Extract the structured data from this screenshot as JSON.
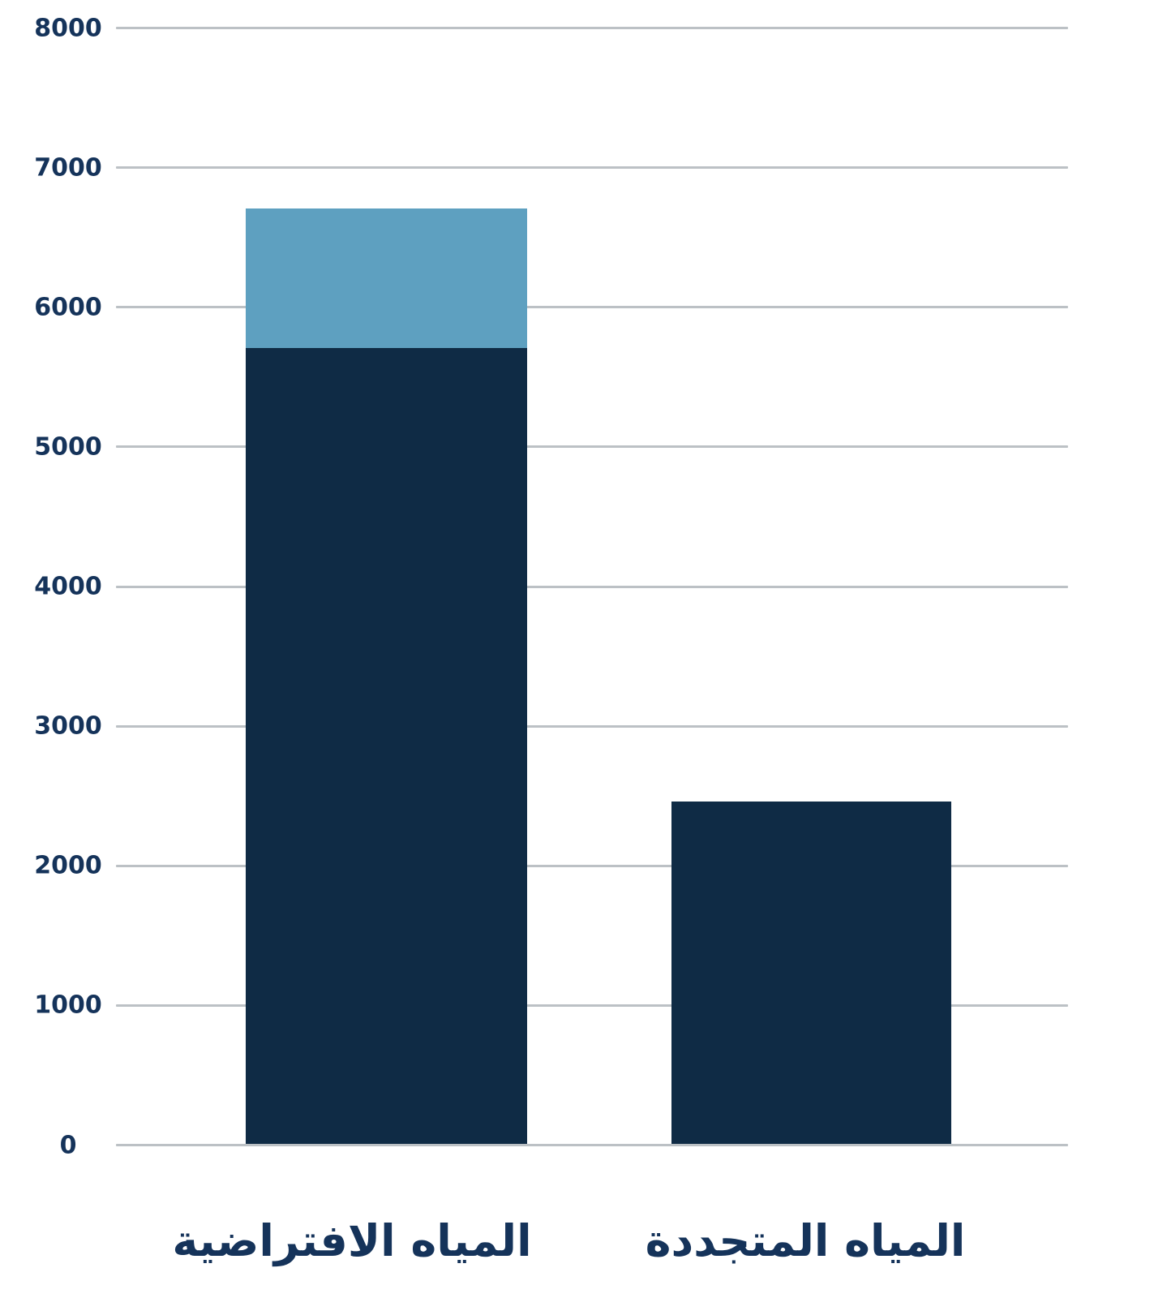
{
  "page": {
    "background_color": "#ffffff"
  },
  "chart_data": {
    "type": "bar",
    "stacked": true,
    "title": "",
    "xlabel": "",
    "ylabel": "",
    "categories": [
      "المياه الافتراضية",
      "المياه المتجددة"
    ],
    "series": [
      {
        "name": "segment-dark-navy",
        "color": "#0F2B45",
        "values": [
          5700,
          2450
        ]
      },
      {
        "name": "segment-light-blue",
        "color": "#5EA0C0",
        "values": [
          1000,
          0
        ]
      }
    ],
    "stack_totals": [
      6700,
      2450
    ],
    "ylim": [
      0,
      8000
    ],
    "yticks": [
      0,
      1000,
      2000,
      3000,
      4000,
      5000,
      6000,
      7000,
      8000
    ],
    "ytick_labels": [
      "0",
      "1000",
      "2000",
      "3000",
      "4000",
      "5000",
      "6000",
      "7000",
      "8000"
    ],
    "grid": true,
    "legend": false,
    "colors": {
      "bar_dark": "#0F2B45",
      "bar_light": "#5EA0C0",
      "gridline": "#BCC1C5",
      "axis_text": "#15335A"
    }
  }
}
